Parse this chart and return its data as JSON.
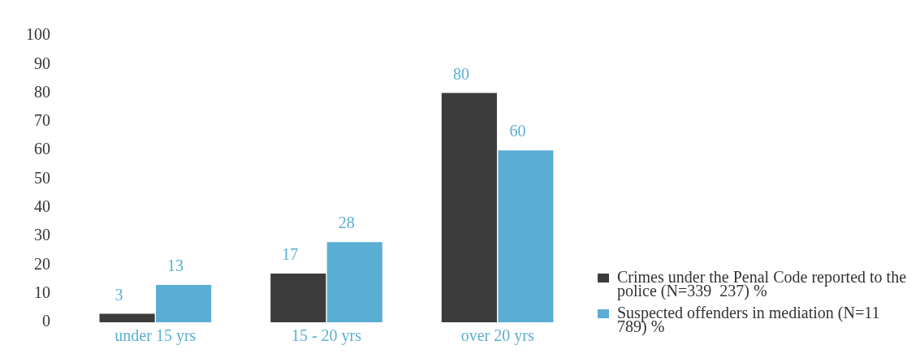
{
  "chart_data": {
    "type": "bar",
    "categories": [
      "under 15 yrs",
      "15 - 20 yrs",
      "over 20 yrs"
    ],
    "series": [
      {
        "name": "Crimes under the Penal Code reported to the police (N=339  237) %",
        "color": "#3c3c3c",
        "values": [
          3,
          17,
          80
        ]
      },
      {
        "name": "Suspected offenders in mediation (N=11 789) %",
        "color": "#5aaed3",
        "values": [
          13,
          28,
          60
        ]
      }
    ],
    "ylim": [
      0,
      100
    ],
    "yticks": [
      0,
      10,
      20,
      30,
      40,
      50,
      60,
      70,
      80,
      90,
      100
    ],
    "grid": false,
    "legend": "bottom right",
    "data_labels": true
  }
}
